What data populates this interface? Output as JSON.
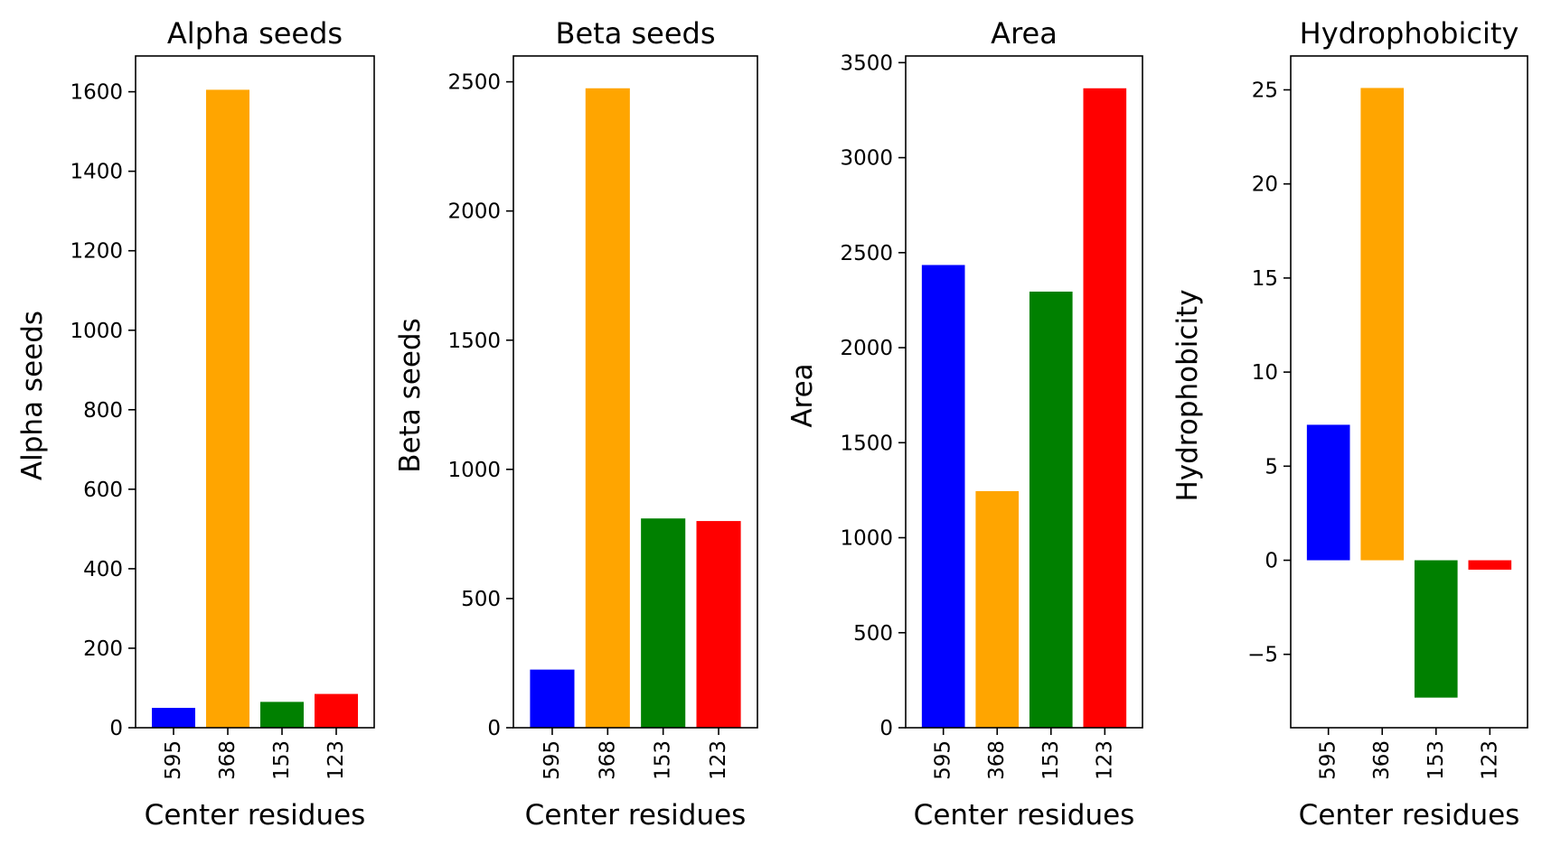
{
  "chart_data": [
    {
      "type": "bar",
      "title": "Alpha seeds",
      "xlabel": "Center residues",
      "ylabel": "Alpha seeds",
      "categories": [
        "595",
        "368",
        "153",
        "123"
      ],
      "values": [
        50,
        1605,
        65,
        85
      ],
      "colors": [
        "#0000ff",
        "#ffa500",
        "#008000",
        "#ff0000"
      ],
      "ylim": [
        0,
        1690
      ],
      "yticks": [
        0,
        200,
        400,
        600,
        800,
        1000,
        1200,
        1400,
        1600
      ],
      "ytick_labels": [
        "0",
        "200",
        "400",
        "600",
        "800",
        "1000",
        "1200",
        "1400",
        "1600"
      ],
      "grid": false
    },
    {
      "type": "bar",
      "title": "Beta seeds",
      "xlabel": "Center residues",
      "ylabel": "Beta seeds",
      "categories": [
        "595",
        "368",
        "153",
        "123"
      ],
      "values": [
        225,
        2475,
        810,
        800
      ],
      "colors": [
        "#0000ff",
        "#ffa500",
        "#008000",
        "#ff0000"
      ],
      "ylim": [
        0,
        2600
      ],
      "yticks": [
        0,
        500,
        1000,
        1500,
        2000,
        2500
      ],
      "ytick_labels": [
        "0",
        "500",
        "1000",
        "1500",
        "2000",
        "2500"
      ],
      "grid": false
    },
    {
      "type": "bar",
      "title": "Area",
      "xlabel": "Center residues",
      "ylabel": "Area",
      "categories": [
        "595",
        "368",
        "153",
        "123"
      ],
      "values": [
        2435,
        1245,
        2295,
        3365
      ],
      "colors": [
        "#0000ff",
        "#ffa500",
        "#008000",
        "#ff0000"
      ],
      "ylim": [
        0,
        3535
      ],
      "yticks": [
        0,
        500,
        1000,
        1500,
        2000,
        2500,
        3000,
        3500
      ],
      "ytick_labels": [
        "0",
        "500",
        "1000",
        "1500",
        "2000",
        "2500",
        "3000",
        "3500"
      ],
      "grid": false
    },
    {
      "type": "bar",
      "title": "Hydrophobicity",
      "xlabel": "Center residues",
      "ylabel": "Hydrophobicity",
      "categories": [
        "595",
        "368",
        "153",
        "123"
      ],
      "values": [
        7.2,
        25.1,
        -7.3,
        -0.5
      ],
      "colors": [
        "#0000ff",
        "#ffa500",
        "#008000",
        "#ff0000"
      ],
      "ylim": [
        -8.9,
        26.8
      ],
      "yticks": [
        -5,
        0,
        5,
        10,
        15,
        20,
        25
      ],
      "ytick_labels": [
        "−5",
        "0",
        "5",
        "10",
        "15",
        "20",
        "25"
      ],
      "grid": false
    }
  ]
}
